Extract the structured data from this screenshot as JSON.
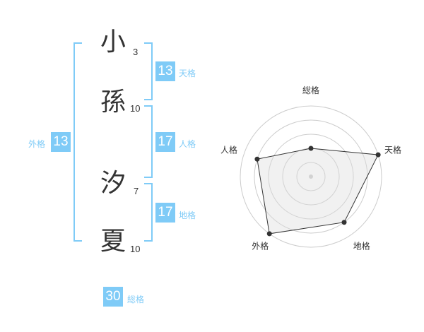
{
  "name": {
    "chars": [
      {
        "char": "小",
        "strokes": "3"
      },
      {
        "char": "孫",
        "strokes": "10"
      },
      {
        "char": "汐",
        "strokes": "7"
      },
      {
        "char": "夏",
        "strokes": "10"
      }
    ]
  },
  "kaku": {
    "tenkaku": {
      "label": "天格",
      "value": "13"
    },
    "jinkaku": {
      "label": "人格",
      "value": "17"
    },
    "chikaku": {
      "label": "地格",
      "value": "17"
    },
    "gaikaku": {
      "label": "外格",
      "value": "13"
    },
    "soukaku": {
      "label": "総格",
      "value": "30"
    }
  },
  "accent_color": "#7fcbf7",
  "chart_data": {
    "type": "radar",
    "categories": [
      "総格",
      "天格",
      "地格",
      "外格",
      "人格"
    ],
    "values": [
      2,
      5,
      4,
      5,
      4
    ],
    "rlim": [
      0,
      5
    ],
    "grid": true
  }
}
